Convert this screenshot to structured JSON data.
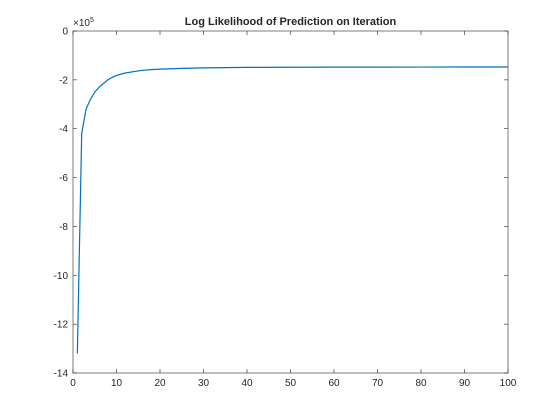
{
  "chart_data": {
    "type": "line",
    "title": "Log Likelihood of Prediction on Iteration",
    "xlabel": "",
    "ylabel": "",
    "y_scale_label": "×10",
    "y_scale_exponent": "5",
    "xlim": [
      0,
      100
    ],
    "ylim": [
      -14,
      0
    ],
    "x_ticks": [
      0,
      10,
      20,
      30,
      40,
      50,
      60,
      70,
      80,
      90,
      100
    ],
    "y_ticks": [
      0,
      -2,
      -4,
      -6,
      -8,
      -10,
      -12,
      -14
    ],
    "grid": false,
    "series": [
      {
        "color": "#0072BD",
        "x": [
          1,
          2,
          3,
          4,
          5,
          6,
          7,
          8,
          9,
          10,
          12,
          14,
          16,
          18,
          20,
          25,
          30,
          35,
          40,
          50,
          60,
          70,
          80,
          90,
          100
        ],
        "y": [
          -13.2,
          -4.2,
          -3.2,
          -2.8,
          -2.5,
          -2.3,
          -2.15,
          -2.0,
          -1.9,
          -1.82,
          -1.72,
          -1.66,
          -1.61,
          -1.58,
          -1.56,
          -1.53,
          -1.51,
          -1.5,
          -1.49,
          -1.485,
          -1.48,
          -1.478,
          -1.476,
          -1.475,
          -1.474
        ]
      }
    ]
  }
}
